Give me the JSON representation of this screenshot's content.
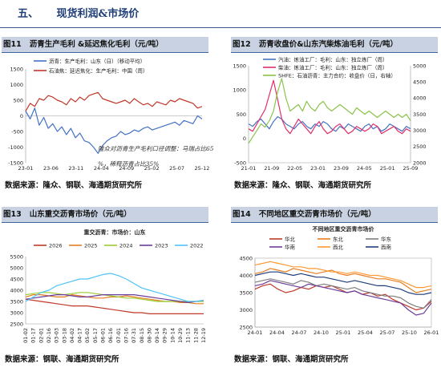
{
  "section": {
    "number": "五、",
    "title": "现货利润&市场价"
  },
  "figures": [
    {
      "num": "图11",
      "title": "沥青生产毛利 &延迟焦化毛利（元/吨）",
      "source": "数据来源：隆众、钢联、海通期货研究所"
    },
    {
      "num": "图12",
      "title": "沥青收盘价&山东汽柴炼油毛利（元/吨）",
      "source": "数据来源：隆众、钢联、海通期货研究所"
    },
    {
      "num": "图13",
      "title": "山东重交沥青市场价（元/吨）",
      "source": "数据来源：钢联、海通期货研究所"
    },
    {
      "num": "图14",
      "title": "不同地区重交沥青市场价（元/吨）",
      "source": "数据来源：钢联、海通期货研究所"
    }
  ],
  "chart_data": [
    {
      "type": "line",
      "title": "",
      "annotation": "隆众对沥青生产毛利口径调整：马瑞占比65%，稀释沥青占比35%",
      "x_ticks": [
        "23-01",
        "23-06",
        "23-11",
        "24-04",
        "24-09",
        "25-02",
        "25-07",
        "25-12"
      ],
      "y_ticks": [
        1500,
        1000,
        500,
        0,
        -500,
        -1000,
        -1500
      ],
      "ylim": [
        -1500,
        1500
      ],
      "legend_position": "top",
      "series": [
        {
          "name": "沥青：生产毛利：山东（日）（移动平均）",
          "color": "#4472c4",
          "values": [
            150,
            -100,
            250,
            -300,
            -50,
            -400,
            -250,
            -500,
            -350,
            -600,
            -400,
            -700,
            -550,
            -800,
            -850,
            -1000,
            -1200,
            -950,
            -800,
            -700,
            -650,
            -500,
            -600,
            -550,
            -450,
            -500,
            -400,
            -350,
            -450,
            -400,
            -350,
            -300,
            -250,
            -200,
            -300,
            -150,
            -200,
            -250,
            0,
            -100
          ]
        },
        {
          "name": "石油焦：延迟焦化：生产毛利：中国（周）",
          "color": "#c0392b",
          "values": [
            150,
            400,
            300,
            550,
            500,
            650,
            600,
            500,
            450,
            350,
            550,
            450,
            600,
            500,
            650,
            700,
            750,
            550,
            500,
            450,
            400,
            450,
            500,
            400,
            550,
            450,
            350,
            400,
            300,
            450,
            400,
            350,
            500,
            450,
            550,
            500,
            450,
            400,
            250,
            300
          ]
        }
      ]
    },
    {
      "type": "line",
      "title": "",
      "x_ticks": [
        "21-01",
        "21-09",
        "22-05",
        "23-01",
        "23-09",
        "24-05",
        "25-01",
        "25-09"
      ],
      "y_ticks_left": [
        1500,
        1000,
        500,
        0,
        -500
      ],
      "y_ticks_right": [
        5000,
        4500,
        4000,
        3500,
        3000,
        2500,
        2000
      ],
      "ylim_left": [
        -500,
        1500
      ],
      "ylim_right": [
        2000,
        5000
      ],
      "legend_position": "top-right",
      "series": [
        {
          "name": "汽油：炼油工厂：毛利：山东：独立炼厂（周）",
          "color": "#4472c4",
          "axis": "left",
          "values": [
            300,
            250,
            350,
            400,
            300,
            200,
            350,
            450,
            400,
            300,
            250,
            200,
            300,
            350,
            250,
            200,
            300,
            250,
            350,
            300,
            200,
            150,
            250,
            200,
            300,
            250,
            200,
            150,
            250,
            300,
            200,
            250,
            150,
            200,
            300,
            250,
            200,
            150,
            250,
            200
          ]
        },
        {
          "name": "柴油：炼油工厂：毛利：山东：独立炼厂（周）",
          "color": "#e0316d",
          "axis": "left",
          "values": [
            200,
            150,
            300,
            450,
            600,
            900,
            1200,
            800,
            400,
            200,
            100,
            250,
            400,
            300,
            200,
            100,
            250,
            350,
            200,
            100,
            150,
            250,
            300,
            200,
            100,
            150,
            250,
            200,
            150,
            200,
            300,
            250,
            100,
            150,
            200,
            250,
            150,
            100,
            200,
            150
          ]
        },
        {
          "name": "SHFE：石油沥青：主力合约：收盘价（日，右轴）",
          "color": "#8bc34a",
          "axis": "right",
          "values": [
            2600,
            2800,
            3000,
            3200,
            3100,
            3300,
            3600,
            4200,
            4600,
            4000,
            3600,
            3700,
            3800,
            3600,
            3900,
            3700,
            3600,
            3800,
            3900,
            3700,
            3600,
            3700,
            3800,
            3700,
            3600,
            3500,
            3700,
            3600,
            3500,
            3600,
            3500,
            3400,
            3500,
            3600,
            3500,
            3400,
            3500,
            3400,
            3500,
            3300
          ]
        }
      ]
    },
    {
      "type": "line",
      "title": "重交沥青：市场价：山东",
      "x_ticks": [
        "01-02",
        "01-17",
        "02-01",
        "02-16",
        "03-03",
        "03-18",
        "04-02",
        "04-17",
        "05-02",
        "05-17",
        "06-01",
        "06-16",
        "07-01",
        "07-16",
        "07-31",
        "08-15",
        "08-30",
        "09-14",
        "09-29",
        "10-14",
        "10-29",
        "11-13",
        "11-28",
        "12-19"
      ],
      "y_ticks": [
        5500,
        5000,
        4500,
        4000,
        3500,
        3000,
        2500
      ],
      "ylim": [
        2500,
        5500
      ],
      "legend_position": "top",
      "series": [
        {
          "name": "2026",
          "color": "#c0392b",
          "values": [
            3600,
            3550,
            3500,
            3450,
            3400,
            3350,
            3300,
            3300,
            3300,
            3250,
            3200,
            3150,
            3100,
            3050,
            3000,
            3000,
            2950,
            2950,
            2950,
            2950,
            2950,
            2950,
            2950,
            2950
          ]
        },
        {
          "name": "2025",
          "color": "#e67e22",
          "values": [
            3700,
            3800,
            3800,
            3750,
            3700,
            3700,
            3800,
            3750,
            3700,
            3650,
            3650,
            3700,
            3700,
            3750,
            3700,
            3650,
            3600,
            3550,
            3500,
            3500,
            3450,
            3450,
            3400,
            3400
          ]
        },
        {
          "name": "2024",
          "color": "#9acd32",
          "values": [
            3800,
            3850,
            3900,
            3900,
            3850,
            3800,
            3850,
            3900,
            3900,
            3850,
            3800,
            3750,
            3700,
            3650,
            3650,
            3600,
            3550,
            3500,
            3500,
            3500,
            3500,
            3500,
            3500,
            3500
          ]
        },
        {
          "name": "2023",
          "color": "#6a3d9a",
          "values": [
            3600,
            3650,
            3700,
            3750,
            3800,
            3800,
            3750,
            3700,
            3700,
            3750,
            3800,
            3800,
            3800,
            3800,
            3800,
            3750,
            3700,
            3650,
            3600,
            3550,
            3500,
            3450,
            3500,
            3550
          ]
        },
        {
          "name": "2022",
          "color": "#4fc3f7",
          "values": [
            3500,
            3700,
            3900,
            4000,
            4200,
            4300,
            4400,
            4500,
            4500,
            4600,
            4700,
            4750,
            4650,
            4500,
            4300,
            4100,
            4000,
            3900,
            3800,
            3700,
            3600,
            3500,
            3500,
            3550
          ]
        }
      ]
    },
    {
      "type": "line",
      "title": "不同地区重交沥青市场价",
      "x_ticks": [
        "24-01",
        "24-04",
        "24-07",
        "24-10",
        "25-01",
        "25-04",
        "25-07",
        "25-10",
        "26-01"
      ],
      "y_ticks": [
        4500,
        4000,
        3500,
        3000,
        2500
      ],
      "ylim": [
        2500,
        4500
      ],
      "legend_position": "top",
      "series": [
        {
          "name": "华北",
          "color": "#c0392b",
          "values": [
            3600,
            3700,
            3750,
            3600,
            3500,
            3550,
            3650,
            3600,
            3700,
            3650,
            3700,
            3600,
            3500,
            3550,
            3450,
            3500,
            3400,
            3450,
            3300,
            3200,
            3100,
            3000,
            3050,
            3250
          ]
        },
        {
          "name": "东北",
          "color": "#e67e22",
          "values": [
            4050,
            4100,
            4200,
            4150,
            4100,
            4200,
            4150,
            4100,
            4050,
            4100,
            4150,
            4050,
            4000,
            4050,
            4000,
            3950,
            3900,
            3900,
            3850,
            3800,
            3650,
            3500,
            3550,
            3600
          ]
        },
        {
          "name": "华东",
          "color": "#7f7f7f",
          "values": [
            3800,
            3850,
            3900,
            3850,
            3800,
            3750,
            3850,
            3800,
            3700,
            3750,
            3700,
            3650,
            3600,
            3650,
            3550,
            3500,
            3450,
            3400,
            3400,
            3350,
            3200,
            3100,
            3050,
            3300
          ]
        },
        {
          "name": "华南",
          "color": "#6a3d9a",
          "values": [
            3700,
            3750,
            3850,
            3800,
            3750,
            3700,
            3650,
            3750,
            3700,
            3650,
            3600,
            3550,
            3500,
            3550,
            3450,
            3400,
            3350,
            3300,
            3250,
            3200,
            3000,
            2850,
            2900,
            3200
          ]
        },
        {
          "name": "西北",
          "color": "#ff9933",
          "values": [
            4300,
            4350,
            4400,
            4350,
            4300,
            4250,
            4250,
            4200,
            4200,
            4150,
            4100,
            4100,
            4050,
            4100,
            4050,
            4000,
            4000,
            3950,
            3900,
            3850,
            3750,
            3650,
            3650,
            3700
          ]
        },
        {
          "name": "西南",
          "color": "#1f3e78",
          "values": [
            4000,
            4050,
            4100,
            4100,
            4050,
            4000,
            4050,
            4000,
            3950,
            3950,
            3900,
            3850,
            3800,
            3850,
            3800,
            3750,
            3700,
            3700,
            3650,
            3600,
            3500,
            3450,
            3450,
            3500
          ]
        }
      ]
    }
  ]
}
